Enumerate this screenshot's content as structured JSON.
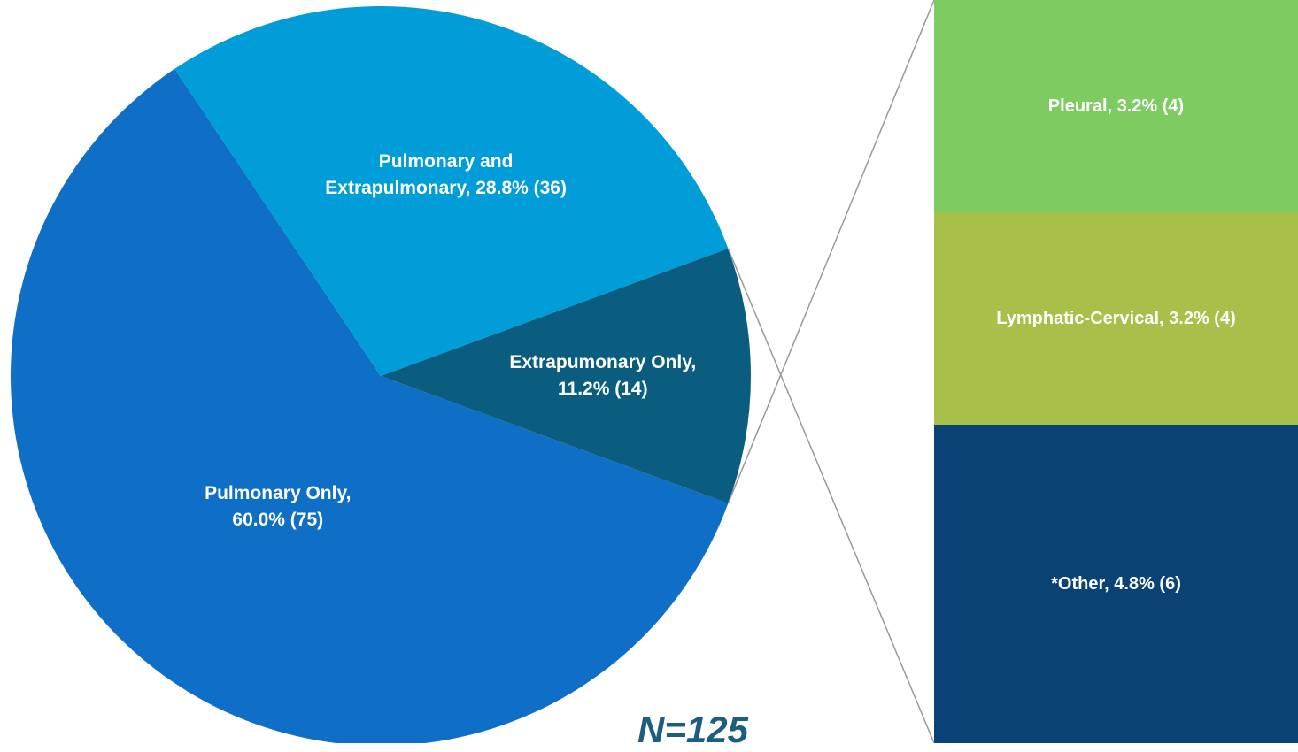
{
  "chart_data": {
    "type": "pie",
    "values": [
      60.0,
      28.8,
      11.2
    ],
    "value_labels": [
      "Pulmonary Only, 60.0% (75)",
      "Pulmonary and Extrapulmonary, 28.8% (36)",
      "Extrapumonary Only, 11.2% (14)"
    ],
    "colors": [
      "#0f6fc6",
      "#009dd9",
      "#0b5d80"
    ],
    "breakdown": {
      "values": [
        3.2,
        3.2,
        4.8
      ],
      "value_labels": [
        "Pleural, 3.2% (4)",
        "Lymphatic-Cervical, 3.2% (4)",
        "*Other, 4.8% (6)"
      ],
      "colors": [
        "#7ecb61",
        "#a6c04a",
        "#0b4276"
      ]
    },
    "annotation": "N=125"
  }
}
